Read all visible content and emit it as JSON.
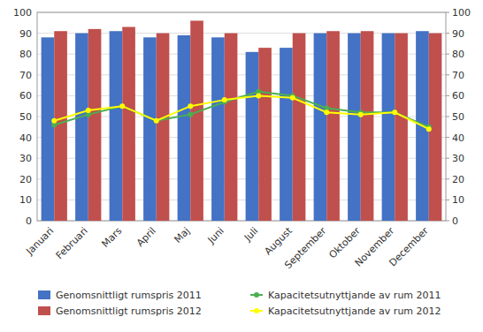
{
  "chart_data": {
    "type": "bar",
    "categories": [
      "Januari",
      "Februari",
      "Mars",
      "April",
      "Maj",
      "Juni",
      "Juli",
      "August",
      "September",
      "Oktober",
      "November",
      "December"
    ],
    "series": [
      {
        "name": "Genomsnittligt rumspris 2011",
        "type": "bar",
        "color": "#4472C4",
        "values": [
          88,
          90,
          91,
          88,
          89,
          88,
          81,
          83,
          90,
          90,
          90,
          91
        ]
      },
      {
        "name": "Genomsnittligt rumspris 2012",
        "type": "bar",
        "color": "#C0504D",
        "values": [
          91,
          92,
          93,
          90,
          96,
          90,
          83,
          90,
          91,
          91,
          90,
          90
        ]
      },
      {
        "name": "Kapacitetsutnyttjande av rum 2011",
        "type": "line",
        "axis": "y2",
        "marker": "circle",
        "color": "#4CAF50",
        "values": [
          46,
          51,
          55,
          48,
          51,
          57,
          62,
          60,
          54,
          52,
          52,
          45
        ]
      },
      {
        "name": "Kapacitetsutnyttjande av rum 2012",
        "type": "line",
        "axis": "y2",
        "marker": "circle",
        "color": "#FFFF00",
        "values": [
          48,
          53,
          55,
          48,
          55,
          58,
          60,
          59,
          52,
          51,
          52,
          44
        ]
      }
    ],
    "ylim": [
      0,
      100
    ],
    "yticks": [
      0,
      10,
      20,
      30,
      40,
      50,
      60,
      70,
      80,
      90,
      100
    ],
    "y2lim": [
      0,
      100
    ],
    "y2ticks": [
      0,
      10,
      20,
      30,
      40,
      50,
      60,
      70,
      80,
      90,
      100
    ],
    "grid": true,
    "legend": "bottom"
  }
}
